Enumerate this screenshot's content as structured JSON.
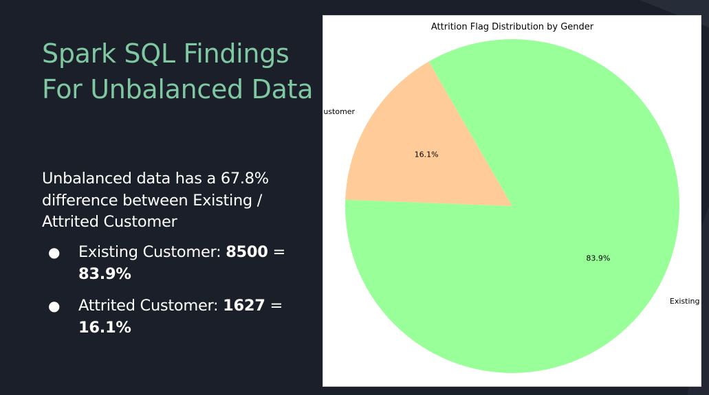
{
  "slide": {
    "title": "Spark SQL Findings For Unbalanced Data",
    "summary": "Unbalanced data has a 67.8% difference between Existing / Attrited Customer",
    "bullets": [
      {
        "label": "Existing Customer: ",
        "count": "8500",
        "sep": " = ",
        "percent": "83.9%"
      },
      {
        "label": "Attrited Customer: ",
        "count": "1627",
        "sep": " = ",
        "percent": "16.1%"
      }
    ],
    "bullet_glyph": "●"
  },
  "colors": {
    "background": "#1b1f29",
    "title": "#80c8a1",
    "text": "#ffffff"
  },
  "chart_data": {
    "type": "pie",
    "title": "Attrition Flag Distribution by Gender",
    "start_angle_deg": 120,
    "direction": "counterclockwise",
    "slices": [
      {
        "label": "Attrited Customer",
        "value": 1627,
        "pct_label": "16.1%",
        "color": "#ffcc99"
      },
      {
        "label": "Existing Customer",
        "value": 8500,
        "pct_label": "83.9%",
        "color": "#99ff99"
      }
    ]
  }
}
